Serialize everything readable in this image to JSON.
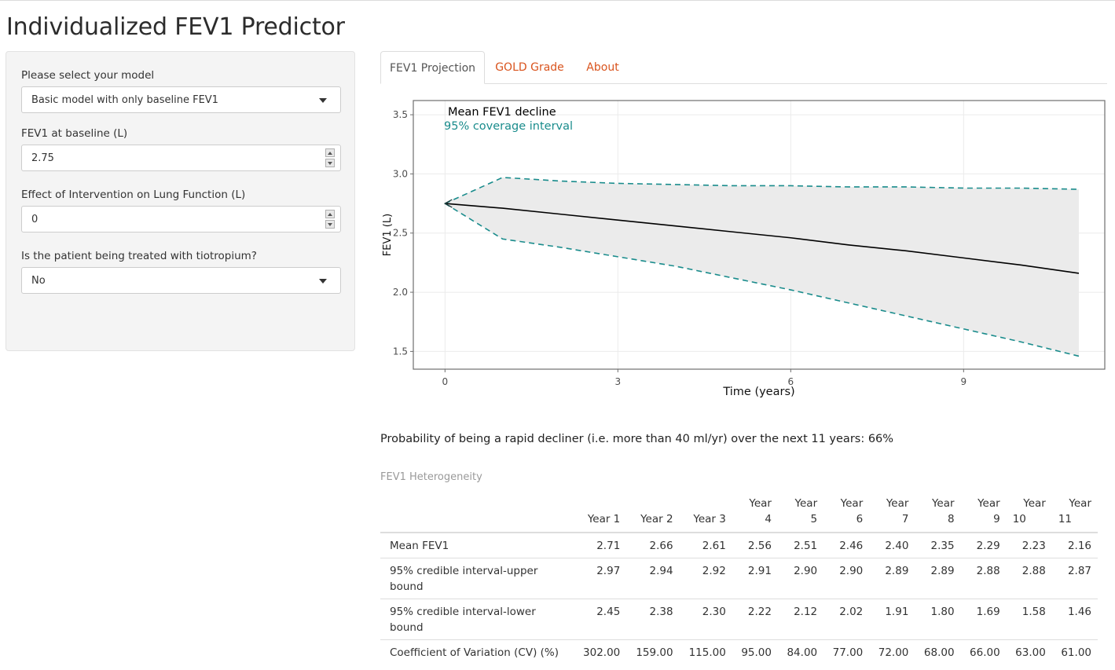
{
  "app": {
    "title": "Individualized FEV1 Predictor"
  },
  "sidebar": {
    "model_label": "Please select your model",
    "model_value": "Basic model with only baseline FEV1",
    "fev1_label": "FEV1 at baseline (L)",
    "fev1_value": "2.75",
    "intervention_label": "Effect of Intervention on Lung Function (L)",
    "intervention_value": "0",
    "tiotropium_label": "Is the patient being treated with tiotropium?",
    "tiotropium_value": "No"
  },
  "tabs": [
    {
      "label": "FEV1 Projection",
      "active": true
    },
    {
      "label": "GOLD Grade",
      "active": false
    },
    {
      "label": "About",
      "active": false
    }
  ],
  "colors": {
    "accent": "#d9541e",
    "interval": "#1a8c8c",
    "mean": "#000000",
    "ribbon": "#ebebeb"
  },
  "chart_data": {
    "type": "line",
    "xlabel": "Time (years)",
    "ylabel": "FEV1 (L)",
    "xlim": [
      -0.55,
      11.45
    ],
    "ylim": [
      1.35,
      3.62
    ],
    "xticks": [
      0,
      3,
      6,
      9
    ],
    "yticks": [
      1.5,
      2.0,
      2.5,
      3.0,
      3.5
    ],
    "ytick_labels": [
      "1.5",
      "2.0",
      "2.5",
      "3.0",
      "3.5"
    ],
    "grid": true,
    "legend_position": "top-left",
    "series": [
      {
        "name": "Mean FEV1 decline",
        "style": "solid",
        "x": [
          0,
          1,
          2,
          3,
          4,
          5,
          6,
          7,
          8,
          9,
          10,
          11
        ],
        "values": [
          2.75,
          2.71,
          2.66,
          2.61,
          2.56,
          2.51,
          2.46,
          2.4,
          2.35,
          2.29,
          2.23,
          2.16
        ]
      },
      {
        "name": "95% coverage interval",
        "style": "dashed",
        "x": [
          0,
          1,
          2,
          3,
          4,
          5,
          6,
          7,
          8,
          9,
          10,
          11
        ],
        "upper": [
          2.75,
          2.97,
          2.94,
          2.92,
          2.91,
          2.9,
          2.9,
          2.89,
          2.89,
          2.88,
          2.88,
          2.87
        ],
        "lower": [
          2.75,
          2.45,
          2.38,
          2.3,
          2.22,
          2.12,
          2.02,
          1.91,
          1.8,
          1.69,
          1.58,
          1.46
        ]
      }
    ]
  },
  "probability_text": "Probability of being a rapid decliner (i.e. more than 40 ml/yr) over the next 11 years: 66%",
  "table": {
    "caption": "FEV1 Heterogeneity",
    "headers": [
      [
        "Year 1"
      ],
      [
        "Year 2"
      ],
      [
        "Year 3"
      ],
      [
        "Year",
        "4"
      ],
      [
        "Year",
        "5"
      ],
      [
        "Year",
        "6"
      ],
      [
        "Year",
        "7"
      ],
      [
        "Year",
        "8"
      ],
      [
        "Year",
        "9"
      ],
      [
        "Year",
        "10"
      ],
      [
        "Year",
        "11"
      ]
    ],
    "rows": [
      {
        "label": "Mean FEV1",
        "values": [
          "2.71",
          "2.66",
          "2.61",
          "2.56",
          "2.51",
          "2.46",
          "2.40",
          "2.35",
          "2.29",
          "2.23",
          "2.16"
        ]
      },
      {
        "label": "95% credible interval-upper bound",
        "values": [
          "2.97",
          "2.94",
          "2.92",
          "2.91",
          "2.90",
          "2.90",
          "2.89",
          "2.89",
          "2.88",
          "2.88",
          "2.87"
        ]
      },
      {
        "label": "95% credible interval-lower bound",
        "values": [
          "2.45",
          "2.38",
          "2.30",
          "2.22",
          "2.12",
          "2.02",
          "1.91",
          "1.80",
          "1.69",
          "1.58",
          "1.46"
        ]
      },
      {
        "label": "Coefficient of Variation (CV) (%)",
        "values": [
          "302.00",
          "159.00",
          "115.00",
          "95.00",
          "84.00",
          "77.00",
          "72.00",
          "68.00",
          "66.00",
          "63.00",
          "61.00"
        ]
      }
    ]
  }
}
